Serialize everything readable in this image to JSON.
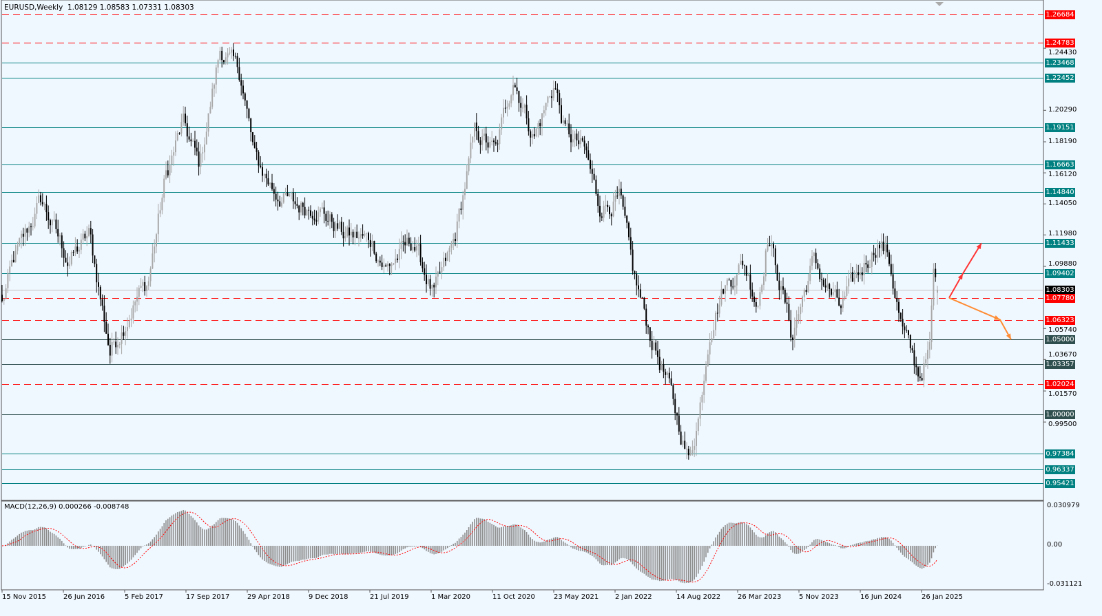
{
  "header": {
    "symbol_timeframe": "EURUSD,Weekly",
    "open": "1.08129",
    "high": "1.08583",
    "low": "1.07331",
    "close": "1.08303"
  },
  "colors": {
    "background": "#f0f8ff",
    "support_resistance": "#008080",
    "round_levels": "#2f4f4f",
    "dashed_levels": "#ff0000",
    "bull_candle": "#a8a8a8",
    "bear_candle": "#000000",
    "macd_histogram": "#8c8c8c",
    "macd_signal": "#ff0000",
    "up_arrow": "#ff3333",
    "down_arrow": "#ff8c33"
  },
  "chart_data": [
    {
      "type": "candlestick",
      "title": "EURUSD,Weekly",
      "ylim": [
        0.95421,
        1.26684
      ],
      "grid": false,
      "last_bar": {
        "open": 1.08129,
        "high": 1.08583,
        "low": 1.07331,
        "close": 1.08303
      },
      "close_anchors": [
        [
          "2015-11-15",
          1.074
        ],
        [
          "2015-12-27",
          1.102
        ],
        [
          "2016-04-05",
          1.143
        ],
        [
          "2016-07-14",
          1.102
        ],
        [
          "2016-09-27",
          1.12
        ],
        [
          "2016-12-11",
          1.042
        ],
        [
          "2017-03-21",
          1.079
        ],
        [
          "2017-04-28",
          1.088
        ],
        [
          "2017-06-29",
          1.157
        ],
        [
          "2017-08-31",
          1.194
        ],
        [
          "2017-11-01",
          1.166
        ],
        [
          "2018-01-15",
          1.244
        ],
        [
          "2018-03-31",
          1.226
        ],
        [
          "2018-05-20",
          1.171
        ],
        [
          "2018-08-03",
          1.148
        ],
        [
          "2018-10-17",
          1.139
        ],
        [
          "2018-12-31",
          1.139
        ],
        [
          "2019-04-10",
          1.12
        ],
        [
          "2019-07-19",
          1.116
        ],
        [
          "2019-09-07",
          1.097
        ],
        [
          "2019-12-16",
          1.116
        ],
        [
          "2020-02-29",
          1.079
        ],
        [
          "2020-05-14",
          1.116
        ],
        [
          "2020-07-28",
          1.189
        ],
        [
          "2020-10-11",
          1.175
        ],
        [
          "2020-12-13",
          1.226
        ],
        [
          "2021-02-26",
          1.185
        ],
        [
          "2021-05-12",
          1.221
        ],
        [
          "2021-06-18",
          1.189
        ],
        [
          "2021-09-01",
          1.175
        ],
        [
          "2021-10-21",
          1.139
        ],
        [
          "2022-01-04",
          1.143
        ],
        [
          "2022-02-23",
          1.093
        ],
        [
          "2022-04-27",
          1.052
        ],
        [
          "2022-06-28",
          1.02
        ],
        [
          "2022-09-11",
          0.969
        ],
        [
          "2022-10-19",
          1.001
        ],
        [
          "2022-11-25",
          1.056
        ],
        [
          "2023-01-14",
          1.084
        ],
        [
          "2023-03-30",
          1.102
        ],
        [
          "2023-05-19",
          1.074
        ],
        [
          "2023-06-26",
          1.12
        ],
        [
          "2023-08-27",
          1.074
        ],
        [
          "2023-09-21",
          1.052
        ],
        [
          "2023-12-05",
          1.102
        ],
        [
          "2024-03-14",
          1.07
        ],
        [
          "2024-05-03",
          1.088
        ],
        [
          "2024-07-30",
          1.116
        ],
        [
          "2024-09-05",
          1.106
        ],
        [
          "2024-10-25",
          1.056
        ],
        [
          "2024-12-27",
          1.026
        ],
        [
          "2025-02-02",
          1.042
        ],
        [
          "2025-02-15",
          1.093
        ],
        [
          "2025-03-02",
          1.08303
        ]
      ],
      "levels": [
        {
          "value": "1.26684",
          "style": "dashed",
          "color": "#ff0000"
        },
        {
          "value": "1.24783",
          "style": "dashed",
          "color": "#ff0000"
        },
        {
          "value": "1.23468",
          "style": "solid",
          "color": "#008080"
        },
        {
          "value": "1.22452",
          "style": "solid",
          "color": "#008080"
        },
        {
          "value": "1.19151",
          "style": "solid",
          "color": "#008080"
        },
        {
          "value": "1.16663",
          "style": "solid",
          "color": "#008080"
        },
        {
          "value": "1.14840",
          "style": "solid",
          "color": "#008080"
        },
        {
          "value": "1.11433",
          "style": "solid",
          "color": "#008080"
        },
        {
          "value": "1.09402",
          "style": "solid",
          "color": "#008080"
        },
        {
          "value": "1.08303",
          "style": "current",
          "color": "#000000"
        },
        {
          "value": "1.07780",
          "style": "dashed",
          "color": "#ff0000"
        },
        {
          "value": "1.06323",
          "style": "dashed",
          "color": "#ff0000"
        },
        {
          "value": "1.05000",
          "style": "solid",
          "color": "#2f4f4f"
        },
        {
          "value": "1.03357",
          "style": "solid",
          "color": "#2f4f4f"
        },
        {
          "value": "1.02024",
          "style": "dashed",
          "color": "#ff0000"
        },
        {
          "value": "1.00000",
          "style": "solid",
          "color": "#2f4f4f"
        },
        {
          "value": "0.97384",
          "style": "solid",
          "color": "#008080"
        },
        {
          "value": "0.96337",
          "style": "solid",
          "color": "#008080"
        },
        {
          "value": "0.95421",
          "style": "solid",
          "color": "#008080"
        }
      ],
      "price_ticks": [
        "1.24430",
        "1.20290",
        "1.18190",
        "1.16120",
        "1.14050",
        "1.11980",
        "1.09880",
        "1.05740",
        "1.03670",
        "1.01570",
        "0.99500"
      ],
      "x_tick_labels": [
        "15 Nov 2015",
        "26 Jun 2016",
        "5 Feb 2017",
        "17 Sep 2017",
        "29 Apr 2018",
        "9 Dec 2018",
        "21 Jul 2019",
        "1 Mar 2020",
        "11 Oct 2020",
        "23 May 2021",
        "2 Jan 2022",
        "14 Aug 2022",
        "26 Mar 2023",
        "5 Nov 2023",
        "16 Jun 2024",
        "26 Jan 2025"
      ],
      "annotations": [
        {
          "type": "arrow",
          "direction": "up",
          "from": 1.0778,
          "to": 1.11433,
          "color": "#ff3333"
        },
        {
          "type": "arrow",
          "direction": "down",
          "from": 1.0778,
          "to": 1.05,
          "color": "#ff8c33"
        }
      ]
    },
    {
      "type": "bar",
      "title": "MACD(12,26,9) 0.000266 -0.008748",
      "indicator": "MACD(12,26,9)",
      "macd": "0.000266",
      "signal": "-0.008748",
      "y_ticks": [
        "0.030979",
        "0.00",
        "-0.031121"
      ],
      "ylim": [
        -0.031121,
        0.030979
      ]
    }
  ]
}
